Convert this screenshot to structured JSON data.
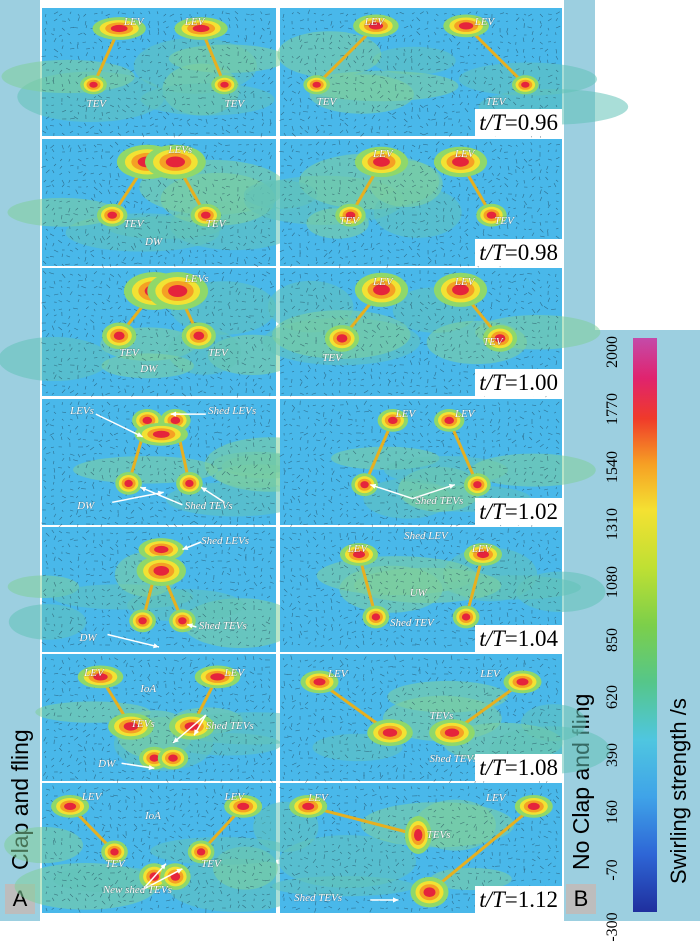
{
  "left_column": {
    "letter": "A",
    "title": "Clap and fling"
  },
  "right_column": {
    "letter": "B",
    "title": "No Clap and fling"
  },
  "colorbar": {
    "label": "Swirling strength /s",
    "ticks": [
      "-300",
      "-70",
      "160",
      "390",
      "620",
      "850",
      "1080",
      "1310",
      "1540",
      "1770",
      "2000"
    ],
    "colors": [
      "#1f2f9e",
      "#3fa3e8",
      "#55c68a",
      "#bfe033",
      "#f6a024",
      "#ef3a2a",
      "#c44ba9"
    ]
  },
  "rows": [
    {
      "time_label": "t/T",
      "time_value": "=0.96",
      "left_labels": [
        "LEV",
        "LEV",
        "TEV",
        "TEV"
      ],
      "right_labels": [
        "LEV",
        "LEV",
        "TEV",
        "TEV"
      ]
    },
    {
      "time_label": "t/T",
      "time_value": "=0.98",
      "left_labels": [
        "LEVs",
        "TEV",
        "TEV",
        "DW"
      ],
      "right_labels": [
        "LEV",
        "LEV",
        "TEV",
        "TEV"
      ]
    },
    {
      "time_label": "t/T",
      "time_value": "=1.00",
      "left_labels": [
        "LEVs",
        "TEV",
        "TEV",
        "DW"
      ],
      "right_labels": [
        "LEV",
        "LEV",
        "TEV",
        "TEV"
      ]
    },
    {
      "time_label": "t/T",
      "time_value": "=1.02",
      "left_labels": [
        "LEVs",
        "Shed LEVs",
        "DW",
        "Shed TEVs"
      ],
      "right_labels": [
        "LEV",
        "LEV",
        "Shed TEVs"
      ]
    },
    {
      "time_label": "t/T",
      "time_value": "=1.04",
      "left_labels": [
        "Shed LEVs",
        "Shed TEVs",
        "DW"
      ],
      "right_labels": [
        "LEV",
        "Shed LEV",
        "LEV",
        "UW",
        "Shed TEV"
      ]
    },
    {
      "time_label": "t/T",
      "time_value": "=1.08",
      "left_labels": [
        "LEV",
        "IoA",
        "LEV",
        "TEVs",
        "Shed TEVs",
        "DW"
      ],
      "right_labels": [
        "LEV",
        "LEV",
        "TEVs",
        "Shed TEVs"
      ]
    },
    {
      "time_label": "t/T",
      "time_value": "=1.12",
      "left_labels": [
        "LEV",
        "IoA",
        "LEV",
        "TEV",
        "TEV",
        "New shed TEVs"
      ],
      "right_labels": [
        "LEV",
        "LEV",
        "TEVs",
        "Shed TEVs"
      ]
    }
  ]
}
